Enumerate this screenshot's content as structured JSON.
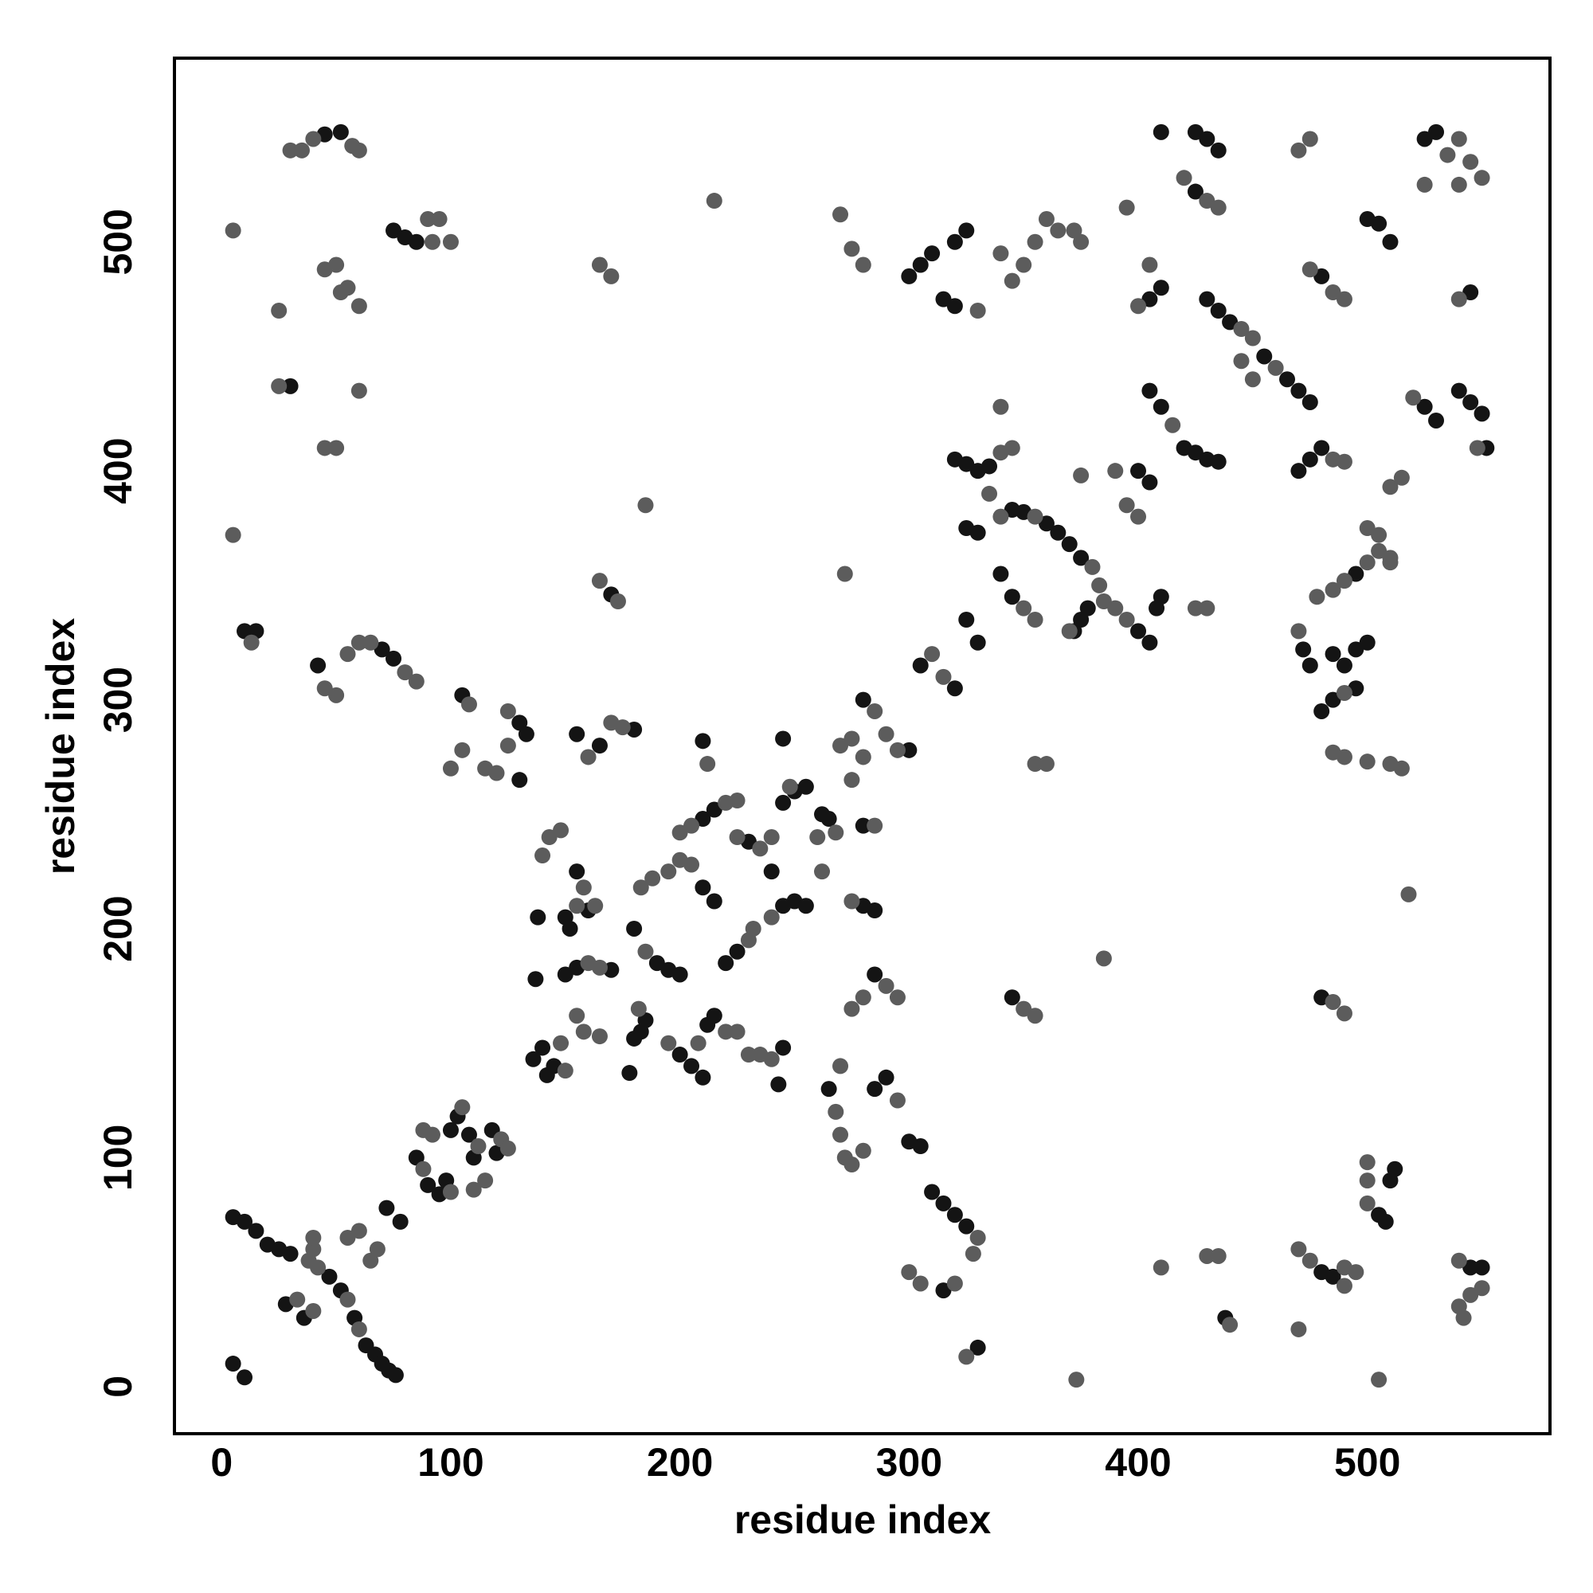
{
  "chart_data": {
    "type": "scatter",
    "xlabel": "residue index",
    "ylabel": "residue index",
    "xlim": [
      -20.6,
      579.7
    ],
    "ylim": [
      -20.6,
      580.3
    ],
    "xticks": [
      0,
      100,
      200,
      300,
      400,
      500
    ],
    "yticks": [
      0,
      100,
      200,
      300,
      400,
      500
    ],
    "grid": false,
    "series": [
      {
        "color": "#141414",
        "x": [
          5,
          10,
          15,
          20,
          25,
          30,
          47,
          52,
          58,
          63,
          67,
          70,
          73,
          76,
          28,
          36,
          72,
          78,
          5,
          10,
          85,
          90,
          95,
          98,
          100,
          103,
          108,
          110,
          118,
          120,
          136,
          140,
          142,
          145,
          137,
          138,
          150,
          152,
          155,
          160,
          150,
          155,
          170,
          180,
          183,
          185,
          178,
          200,
          205,
          212,
          215,
          243,
          210,
          245,
          180,
          190,
          195,
          200,
          210,
          215,
          210,
          215,
          220,
          225,
          245,
          250,
          255,
          240,
          230,
          245,
          250,
          255,
          245,
          262,
          265,
          210,
          155,
          165,
          180,
          130,
          133,
          130,
          105,
          75,
          70,
          42,
          10,
          15,
          30,
          75,
          80,
          85,
          45,
          52,
          170,
          265,
          285,
          290,
          300,
          305,
          285,
          280,
          285,
          280,
          300,
          280,
          310,
          315,
          320,
          325,
          315,
          330,
          345,
          325,
          330,
          340,
          345,
          305,
          320,
          300,
          305,
          310,
          320,
          325,
          315,
          320,
          405,
          410,
          410,
          425,
          430,
          435,
          425,
          430,
          435,
          440,
          455,
          465,
          470,
          475,
          480,
          500,
          505,
          510,
          525,
          530,
          545,
          525,
          530,
          540,
          545,
          550,
          552,
          470,
          475,
          480,
          405,
          410,
          420,
          425,
          430,
          435,
          320,
          325,
          330,
          335,
          325,
          330,
          345,
          350,
          360,
          365,
          370,
          375,
          378,
          375,
          372,
          400,
          405,
          408,
          410,
          400,
          405,
          472,
          475,
          495,
          485,
          490,
          495,
          500,
          480,
          485,
          495,
          480,
          505,
          508,
          510,
          512,
          480,
          485,
          438,
          550,
          545
        ],
        "values": [
          74,
          72,
          68,
          62,
          60,
          58,
          48,
          42,
          30,
          18,
          14,
          10,
          7,
          5,
          36,
          30,
          78,
          72,
          10,
          4,
          100,
          88,
          84,
          90,
          112,
          118,
          110,
          100,
          112,
          102,
          143,
          148,
          136,
          140,
          178,
          205,
          205,
          200,
          225,
          208,
          180,
          183,
          182,
          152,
          155,
          160,
          137,
          145,
          140,
          158,
          162,
          132,
          135,
          148,
          200,
          185,
          182,
          180,
          218,
          212,
          248,
          252,
          185,
          190,
          210,
          212,
          210,
          225,
          238,
          255,
          260,
          262,
          283,
          250,
          248,
          282,
          285,
          280,
          287,
          290,
          285,
          265,
          302,
          318,
          322,
          315,
          330,
          330,
          437,
          505,
          502,
          500,
          547,
          548,
          346,
          130,
          130,
          135,
          107,
          105,
          180,
          210,
          208,
          245,
          278,
          300,
          85,
          80,
          75,
          70,
          42,
          17,
          170,
          335,
          325,
          355,
          345,
          315,
          305,
          485,
          490,
          495,
          500,
          505,
          475,
          472,
          475,
          480,
          548,
          548,
          545,
          540,
          522,
          475,
          470,
          465,
          450,
          440,
          435,
          430,
          485,
          510,
          508,
          500,
          545,
          548,
          478,
          428,
          422,
          435,
          430,
          425,
          410,
          400,
          405,
          410,
          435,
          428,
          410,
          408,
          405,
          404,
          405,
          403,
          400,
          402,
          375,
          373,
          383,
          382,
          377,
          373,
          368,
          362,
          340,
          335,
          330,
          330,
          325,
          340,
          345,
          400,
          395,
          322,
          315,
          355,
          320,
          315,
          322,
          325,
          295,
          300,
          305,
          170,
          75,
          72,
          90,
          95,
          50,
          48,
          30,
          52,
          52
        ]
      },
      {
        "color": "#5c5c5c",
        "x": [
          38,
          42,
          55,
          60,
          33,
          40,
          40,
          40,
          55,
          60,
          65,
          68,
          88,
          92,
          100,
          88,
          105,
          112,
          115,
          122,
          125,
          110,
          150,
          148,
          140,
          143,
          148,
          155,
          158,
          163,
          160,
          165,
          158,
          165,
          155,
          182,
          195,
          208,
          220,
          225,
          230,
          235,
          240,
          185,
          183,
          188,
          195,
          200,
          205,
          200,
          205,
          220,
          225,
          230,
          232,
          240,
          235,
          225,
          240,
          248,
          268,
          260,
          262,
          212,
          160,
          170,
          175,
          125,
          125,
          120,
          115,
          100,
          105,
          108,
          85,
          80,
          65,
          60,
          55,
          50,
          45,
          13,
          5,
          45,
          50,
          60,
          25,
          25,
          5,
          45,
          50,
          55,
          60,
          52,
          90,
          95,
          100,
          92,
          30,
          35,
          40,
          57,
          60,
          165,
          170,
          215,
          185,
          165,
          173,
          268,
          270,
          272,
          275,
          280,
          270,
          295,
          275,
          280,
          290,
          295,
          275,
          285,
          290,
          295,
          285,
          275,
          280,
          270,
          275,
          300,
          305,
          330,
          328,
          320,
          325,
          350,
          355,
          373,
          385,
          272,
          310,
          315,
          350,
          355,
          360,
          355,
          330,
          340,
          345,
          350,
          355,
          360,
          365,
          372,
          375,
          270,
          275,
          280,
          395,
          400,
          405,
          420,
          430,
          435,
          445,
          450,
          460,
          445,
          450,
          475,
          470,
          475,
          485,
          490,
          535,
          540,
          545,
          540,
          550,
          525,
          540,
          520,
          548,
          515,
          510,
          485,
          490,
          415,
          340,
          345,
          340,
          335,
          340,
          355,
          380,
          383,
          385,
          390,
          395,
          375,
          395,
          400,
          390,
          425,
          430,
          370,
          470,
          478,
          485,
          490,
          500,
          505,
          510,
          500,
          505,
          510,
          490,
          485,
          490,
          500,
          510,
          515,
          518,
          485,
          490,
          470,
          475,
          490,
          495,
          490,
          470,
          500,
          500,
          500,
          410,
          430,
          435,
          440,
          505,
          540,
          545,
          540,
          550,
          542
        ],
        "values": [
          55,
          52,
          38,
          25,
          38,
          33,
          60,
          65,
          65,
          68,
          55,
          60,
          95,
          110,
          85,
          112,
          122,
          105,
          90,
          108,
          104,
          86,
          138,
          150,
          232,
          240,
          243,
          210,
          218,
          210,
          185,
          183,
          155,
          153,
          162,
          165,
          150,
          150,
          155,
          155,
          145,
          145,
          143,
          190,
          218,
          222,
          225,
          230,
          228,
          242,
          245,
          255,
          256,
          195,
          200,
          205,
          235,
          240,
          240,
          262,
          242,
          240,
          225,
          272,
          275,
          290,
          288,
          295,
          280,
          268,
          270,
          270,
          278,
          298,
          308,
          312,
          325,
          325,
          320,
          302,
          305,
          325,
          372,
          410,
          410,
          435,
          437,
          470,
          505,
          488,
          490,
          480,
          472,
          478,
          510,
          510,
          500,
          500,
          540,
          540,
          545,
          542,
          540,
          490,
          485,
          518,
          385,
          352,
          343,
          120,
          110,
          100,
          97,
          103,
          140,
          125,
          165,
          170,
          175,
          170,
          212,
          245,
          285,
          278,
          295,
          283,
          275,
          280,
          265,
          50,
          45,
          65,
          58,
          45,
          13,
          165,
          162,
          3,
          187,
          355,
          320,
          310,
          340,
          335,
          272,
          272,
          470,
          495,
          483,
          490,
          500,
          510,
          505,
          505,
          500,
          512,
          497,
          490,
          515,
          472,
          490,
          528,
          518,
          515,
          462,
          458,
          445,
          448,
          440,
          545,
          540,
          488,
          478,
          475,
          538,
          545,
          535,
          525,
          528,
          525,
          475,
          432,
          410,
          397,
          393,
          405,
          404,
          420,
          408,
          410,
          428,
          390,
          380,
          380,
          358,
          350,
          343,
          340,
          335,
          398,
          385,
          380,
          400,
          340,
          340,
          330,
          330,
          345,
          348,
          352,
          360,
          365,
          360,
          375,
          372,
          362,
          303,
          277,
          275,
          273,
          272,
          270,
          215,
          168,
          163,
          60,
          55,
          52,
          50,
          44,
          25,
          90,
          80,
          98,
          52,
          57,
          57,
          27,
          3,
          55,
          40,
          35,
          43,
          30
        ]
      }
    ]
  }
}
